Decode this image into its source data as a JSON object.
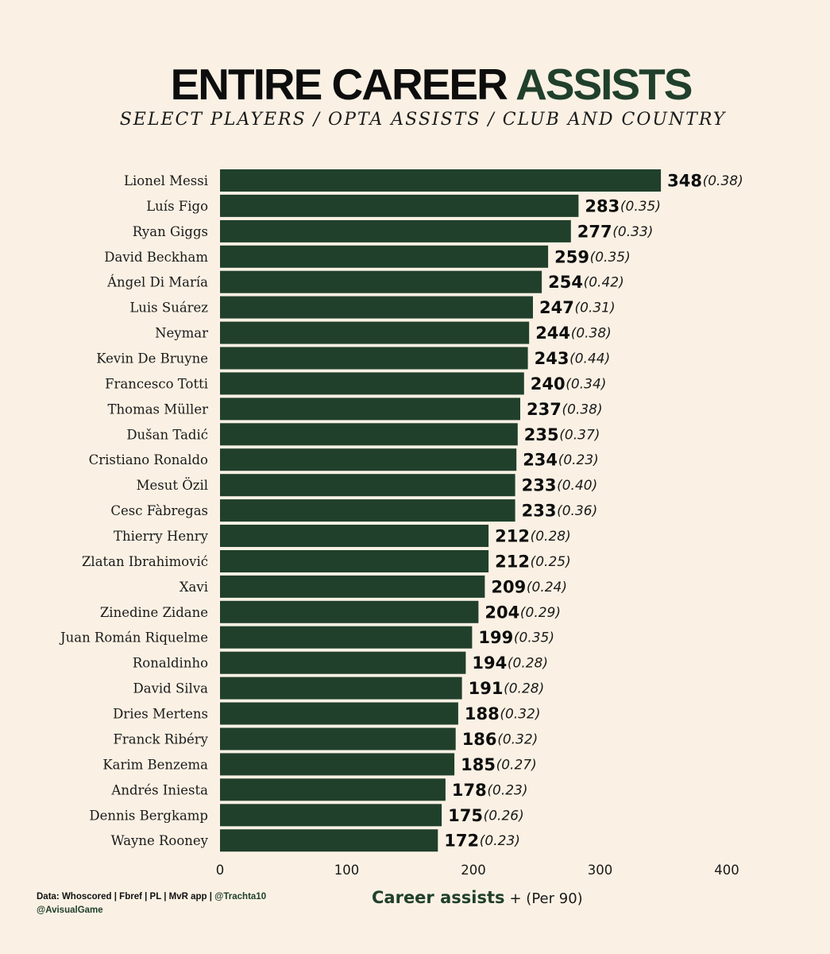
{
  "header": {
    "title_part1": "ENTIRE CAREER",
    "title_part2": "ASSISTS",
    "subtitle": "SELECT PLAYERS  /  OPTA ASSISTS  /  CLUB AND COUNTRY"
  },
  "footer": {
    "source_text": "Data: Whoscored | Fbref | PL | MvR app |",
    "source_handle": "@Trachta10",
    "author_handle": "@AvisualGame",
    "xlabel_main": "Career assists",
    "xlabel_sub": "+ (Per 90)"
  },
  "colors": {
    "background": "#faf1e4",
    "bar": "#20402c",
    "accent": "#20402c"
  },
  "chart_data": {
    "type": "bar",
    "orientation": "horizontal",
    "title": "ENTIRE CAREER ASSISTS",
    "subtitle": "SELECT PLAYERS / OPTA ASSISTS / CLUB AND COUNTRY",
    "xlabel": "Career assists + (Per 90)",
    "ylabel": "",
    "xlim": [
      0,
      400
    ],
    "xticks": [
      "0",
      "100",
      "200",
      "300",
      "400"
    ],
    "grid": false,
    "categories": [
      "Lionel Messi",
      "Luís Figo",
      "Ryan Giggs",
      "David Beckham",
      "Ángel Di María",
      "Luis Suárez",
      "Neymar",
      "Kevin De Bruyne",
      "Francesco Totti",
      "Thomas Müller",
      "Dušan Tadić",
      "Cristiano Ronaldo",
      "Mesut Özil",
      "Cesc Fàbregas",
      "Thierry Henry",
      "Zlatan Ibrahimović",
      "Xavi",
      "Zinedine Zidane",
      "Juan Román Riquelme",
      "Ronaldinho",
      "David Silva",
      "Dries Mertens",
      "Franck Ribéry",
      "Karim Benzema",
      "Andrés Iniesta",
      "Dennis Bergkamp",
      "Wayne Rooney"
    ],
    "values": [
      348,
      283,
      277,
      259,
      254,
      247,
      244,
      243,
      240,
      237,
      235,
      234,
      233,
      233,
      212,
      212,
      209,
      204,
      199,
      194,
      191,
      188,
      186,
      185,
      178,
      175,
      172
    ],
    "per90_labels": [
      "(0.38)",
      "(0.35)",
      "(0.33)",
      "(0.35)",
      "(0.42)",
      "(0.31)",
      "(0.38)",
      "(0.44)",
      "(0.34)",
      "(0.38)",
      "(0.37)",
      "(0.23)",
      "(0.40)",
      "(0.36)",
      "(0.28)",
      "(0.25)",
      "(0.24)",
      "(0.29)",
      "(0.35)",
      "(0.28)",
      "(0.28)",
      "(0.32)",
      "(0.32)",
      "(0.27)",
      "(0.23)",
      "(0.26)",
      "(0.23)"
    ]
  }
}
